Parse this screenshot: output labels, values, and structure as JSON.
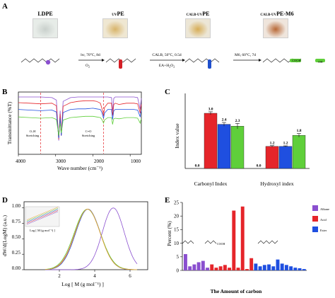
{
  "panels": {
    "A": {
      "letter": "A",
      "samples": [
        {
          "label": "LDPE",
          "sup": "",
          "fill": "#e7ece8",
          "stain": "#c9d0cc"
        },
        {
          "label": "PE",
          "sup": "UV",
          "fill": "#efe7d2",
          "stain": "#d8b46a"
        },
        {
          "label": "PE",
          "sup": "CALB-UV",
          "fill": "#ece6d6",
          "stain": "#d7ad56"
        },
        {
          "label": "PE-M6",
          "sup": "CALB-UV",
          "fill": "#efe5dc",
          "stain": "#b86836"
        }
      ],
      "steps": [
        {
          "top": "hv, 70°C, 8d",
          "bottom": "O",
          "bottom_sub": "2"
        },
        {
          "top": "CALB, 50°C, 0.5d",
          "bottom": "EA+H",
          "bottom_sub": "2",
          "bottom_tail": "O",
          "bottom_sub2": "2"
        },
        {
          "top": "M6, 60°C, 7d",
          "bottom": "",
          "bottom_sub": ""
        }
      ],
      "group_labels": [
        "COOH",
        "OH"
      ],
      "group_colors": {
        "ldpe": "#8a4fcf",
        "uv": "#d41f26",
        "calb": "#1f4fcc",
        "m6": "#5fcf3a"
      }
    },
    "B": {
      "letter": "B",
      "xlabel": "Wave number (cm⁻¹)",
      "ylabel": "Transmittance (%T)",
      "xticks": [
        "4000",
        "3000",
        "2000",
        "1000"
      ],
      "annotations": [
        {
          "line1": "O–H",
          "line2": "Stretching"
        },
        {
          "line1": "C=O",
          "line2": "Stretching"
        }
      ]
    },
    "C": {
      "letter": "C",
      "ylabel": "Index value",
      "groups": [
        "Carbonyl Index",
        "Hydroxyl index"
      ]
    },
    "D": {
      "letter": "D",
      "xlabel": "Log [ M (g mol⁻¹) ]",
      "ylabel": "dW/d(LogM) (a.u.)",
      "inset_xlabel": "Log [ M (g mol⁻¹) ]",
      "yticks": [
        "0.00",
        "0.25",
        "0.50",
        "0.75",
        "1.00"
      ],
      "xticks": [
        "2",
        "4",
        "6"
      ]
    },
    "E": {
      "letter": "E",
      "ylabel": "Percent (%)",
      "xlabel": "The Amount of carbon",
      "legend": [
        "Alkane",
        "Acid",
        "Ester"
      ],
      "struct_labels": [
        "COOH"
      ]
    }
  },
  "colors": {
    "ldpe": "#8a4fcf",
    "uv": "#e5252a",
    "calb": "#1f4fe0",
    "m6": "#5fcf3a",
    "alkane": "#8a4fcf",
    "acid": "#e5252a",
    "ester": "#1f4fe0"
  },
  "chart_data": [
    {
      "panel": "B",
      "type": "line",
      "title": "",
      "xlabel": "Wave number (cm⁻¹)",
      "ylabel": "Transmittance (%T)",
      "xlim": [
        4000,
        700
      ],
      "series": [
        {
          "color": "#8a4fcf",
          "x": [
            4000,
            3700,
            3400,
            3100,
            2980,
            2918,
            2880,
            2849,
            2800,
            2600,
            2400,
            2200,
            2000,
            1900,
            1800,
            1760,
            1715,
            1690,
            1600,
            1500,
            1472,
            1463,
            1440,
            1400,
            1300,
            1200,
            1100,
            1000,
            900,
            800,
            730,
            719,
            700
          ],
          "y": [
            92,
            92,
            92,
            91,
            87,
            22,
            70,
            30,
            85,
            91,
            92,
            92,
            92,
            92,
            92,
            92,
            92,
            92,
            92,
            91,
            70,
            72,
            90,
            92,
            92,
            92,
            92,
            92,
            92,
            91,
            72,
            80,
            90
          ]
        },
        {
          "color": "#e5252a",
          "x": [
            4000,
            3700,
            3400,
            3100,
            2980,
            2918,
            2880,
            2849,
            2800,
            2600,
            2400,
            2200,
            2000,
            1900,
            1800,
            1760,
            1715,
            1690,
            1600,
            1500,
            1472,
            1463,
            1440,
            1400,
            1300,
            1200,
            1100,
            1000,
            900,
            800,
            730,
            719,
            700
          ],
          "y": [
            83,
            82,
            81,
            82,
            78,
            24,
            65,
            30,
            77,
            83,
            85,
            86,
            86,
            85,
            82,
            74,
            62,
            75,
            82,
            82,
            62,
            66,
            80,
            82,
            80,
            81,
            82,
            82,
            82,
            81,
            66,
            74,
            80
          ]
        },
        {
          "color": "#1f4fe0",
          "x": [
            4000,
            3700,
            3400,
            3100,
            2980,
            2918,
            2880,
            2849,
            2800,
            2600,
            2400,
            2200,
            2000,
            1900,
            1800,
            1760,
            1715,
            1690,
            1600,
            1500,
            1472,
            1463,
            1440,
            1400,
            1300,
            1200,
            1100,
            1000,
            900,
            800,
            730,
            719,
            700
          ],
          "y": [
            72,
            71,
            70,
            71,
            68,
            26,
            58,
            30,
            67,
            72,
            73,
            73,
            74,
            73,
            72,
            67,
            58,
            66,
            72,
            72,
            56,
            60,
            70,
            72,
            72,
            72,
            72,
            72,
            72,
            71,
            60,
            66,
            70
          ]
        },
        {
          "color": "#5fcf3a",
          "x": [
            4000,
            3700,
            3400,
            3100,
            2980,
            2918,
            2880,
            2849,
            2800,
            2600,
            2400,
            2200,
            2000,
            1900,
            1800,
            1760,
            1715,
            1690,
            1600,
            1500,
            1472,
            1463,
            1440,
            1400,
            1300,
            1200,
            1100,
            1000,
            900,
            800,
            730,
            719,
            700
          ],
          "y": [
            60,
            59,
            58,
            59,
            56,
            30,
            50,
            34,
            55,
            59,
            60,
            61,
            61,
            60,
            59,
            56,
            50,
            55,
            59,
            59,
            48,
            51,
            57,
            58,
            57,
            58,
            59,
            59,
            59,
            58,
            50,
            54,
            57
          ]
        }
      ],
      "reference_lines": [
        3400,
        1715
      ],
      "annotations": [
        "O–H Stretching",
        "C=O Stretching"
      ]
    },
    {
      "panel": "C",
      "type": "bar",
      "ylabel": "Index value",
      "categories": [
        "Carbonyl Index",
        "Hydroxyl index"
      ],
      "ylim": [
        0,
        3.5
      ],
      "series": [
        {
          "color": "#8a4fcf",
          "values": [
            0.0,
            0.0
          ],
          "errors": [
            0,
            0
          ]
        },
        {
          "color": "#e5252a",
          "values": [
            3.0,
            1.2
          ],
          "errors": [
            0.08,
            0.04
          ]
        },
        {
          "color": "#1f4fe0",
          "values": [
            2.4,
            1.2
          ],
          "errors": [
            0.1,
            0.03
          ]
        },
        {
          "color": "#5fcf3a",
          "values": [
            2.3,
            1.8
          ],
          "errors": [
            0.15,
            0.1
          ]
        }
      ],
      "value_labels": [
        [
          "0.0",
          "3.0",
          "2.4",
          "2.3"
        ],
        [
          "0.0",
          "1.2",
          "1.2",
          "1.8"
        ]
      ]
    },
    {
      "panel": "D",
      "type": "line",
      "xlabel": "Log [ M (g mol⁻¹) ]",
      "ylabel": "dW/d(LogM) (a.u.)",
      "xlim": [
        0,
        7
      ],
      "ylim": [
        0,
        1.1
      ],
      "series": [
        {
          "color": "#8a4fcf",
          "peak": 5.05,
          "width": 0.62
        },
        {
          "color": "#e5252a",
          "peak": 3.6,
          "width": 0.72
        },
        {
          "color": "#1f4fe0",
          "peak": 3.62,
          "width": 0.7
        },
        {
          "color": "#5fcf3a",
          "peak": 3.58,
          "width": 0.74
        },
        {
          "color": "#f0a030",
          "peak": 3.6,
          "width": 0.71
        }
      ]
    },
    {
      "panel": "E",
      "type": "bar",
      "ylabel": "Percent (%)",
      "xlabel": "The Amount of carbon",
      "ylim": [
        0,
        25
      ],
      "yticks": [
        0,
        5,
        10,
        15,
        20,
        25
      ],
      "legend": [
        "Alkane",
        "Acid",
        "Ester"
      ],
      "bars": [
        {
          "series": "Alkane",
          "value": 6.0
        },
        {
          "series": "Alkane",
          "value": 1.5
        },
        {
          "series": "Alkane",
          "value": 2.2
        },
        {
          "series": "Alkane",
          "value": 3.0
        },
        {
          "series": "Alkane",
          "value": 3.5
        },
        {
          "series": "Alkane",
          "value": 1.0
        },
        {
          "series": "Acid",
          "value": 2.2
        },
        {
          "series": "Acid",
          "value": 1.0
        },
        {
          "series": "Acid",
          "value": 1.5
        },
        {
          "series": "Acid",
          "value": 2.0
        },
        {
          "series": "Acid",
          "value": 1.0
        },
        {
          "series": "Acid",
          "value": 22.0
        },
        {
          "series": "Acid",
          "value": 1.0
        },
        {
          "series": "Acid",
          "value": 23.5
        },
        {
          "series": "Acid",
          "value": 0.5
        },
        {
          "series": "Acid",
          "value": 4.5
        },
        {
          "series": "Ester",
          "value": 2.5
        },
        {
          "series": "Ester",
          "value": 1.5
        },
        {
          "series": "Ester",
          "value": 2.0
        },
        {
          "series": "Ester",
          "value": 2.2
        },
        {
          "series": "Ester",
          "value": 1.5
        },
        {
          "series": "Ester",
          "value": 4.0
        },
        {
          "series": "Ester",
          "value": 2.5
        },
        {
          "series": "Ester",
          "value": 2.0
        },
        {
          "series": "Ester",
          "value": 1.5
        },
        {
          "series": "Ester",
          "value": 1.0
        },
        {
          "series": "Ester",
          "value": 0.8
        },
        {
          "series": "Ester",
          "value": 0.5
        }
      ]
    }
  ]
}
